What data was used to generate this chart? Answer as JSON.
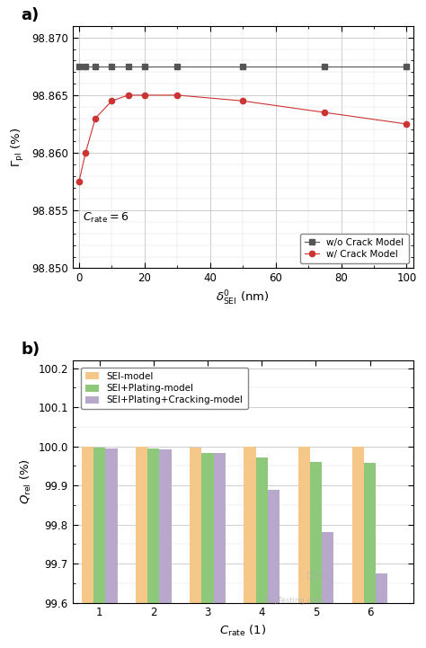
{
  "panel_a": {
    "xlabel": "$\\delta^0_{\\mathrm{SEI}}$ (nm)",
    "ylabel": "$\\Gamma_{\\mathrm{pl}}$ (%)",
    "xlim": [
      -2,
      102
    ],
    "ylim": [
      98.85,
      98.871
    ],
    "yticks": [
      98.85,
      98.855,
      98.86,
      98.865,
      98.87
    ],
    "xticks": [
      0,
      20,
      40,
      60,
      80,
      100
    ],
    "no_crack_x": [
      0,
      2,
      5,
      10,
      15,
      20,
      30,
      50,
      75,
      100
    ],
    "no_crack_y": [
      98.8675,
      98.8675,
      98.8675,
      98.8675,
      98.8675,
      98.8675,
      98.8675,
      98.8675,
      98.8675,
      98.8675
    ],
    "crack_x": [
      0,
      2,
      5,
      10,
      15,
      20,
      30,
      50,
      75,
      100
    ],
    "crack_y": [
      98.8575,
      98.86,
      98.863,
      98.8645,
      98.865,
      98.865,
      98.865,
      98.8645,
      98.8635,
      98.8625
    ],
    "no_crack_color": "#555555",
    "crack_color": "#cc3333",
    "annotation": "$C_{\\mathrm{rate}} = 6$",
    "legend_labels": [
      "w/o Crack Model",
      "w/ Crack Model"
    ]
  },
  "panel_b": {
    "xlabel": "$C_{\\mathrm{rate}}$ (1)",
    "ylabel": "$Q_{\\mathrm{rel}}$ (%)",
    "xlim": [
      0.5,
      6.8
    ],
    "ylim": [
      99.6,
      100.22
    ],
    "yticks": [
      99.6,
      99.7,
      99.8,
      99.9,
      100.0,
      100.1,
      100.2
    ],
    "xticks": [
      1,
      2,
      3,
      4,
      5,
      6
    ],
    "crates": [
      1,
      2,
      3,
      4,
      5,
      6
    ],
    "sei_values": [
      100.0,
      100.0,
      99.997,
      100.0,
      100.0,
      100.0
    ],
    "sei_plating_values": [
      99.997,
      99.995,
      99.983,
      99.971,
      99.961,
      99.957
    ],
    "sei_plating_cracking_values": [
      99.995,
      99.993,
      99.982,
      99.888,
      99.78,
      99.675
    ],
    "sei_color": "#f5c88a",
    "sei_plating_color": "#8ec87a",
    "sei_plating_cracking_color": "#b8a8cc",
    "legend_labels": [
      "SEI-model",
      "SEI+Plating-model",
      "SEI+Plating+Cracking-model"
    ],
    "bar_width": 0.22
  }
}
